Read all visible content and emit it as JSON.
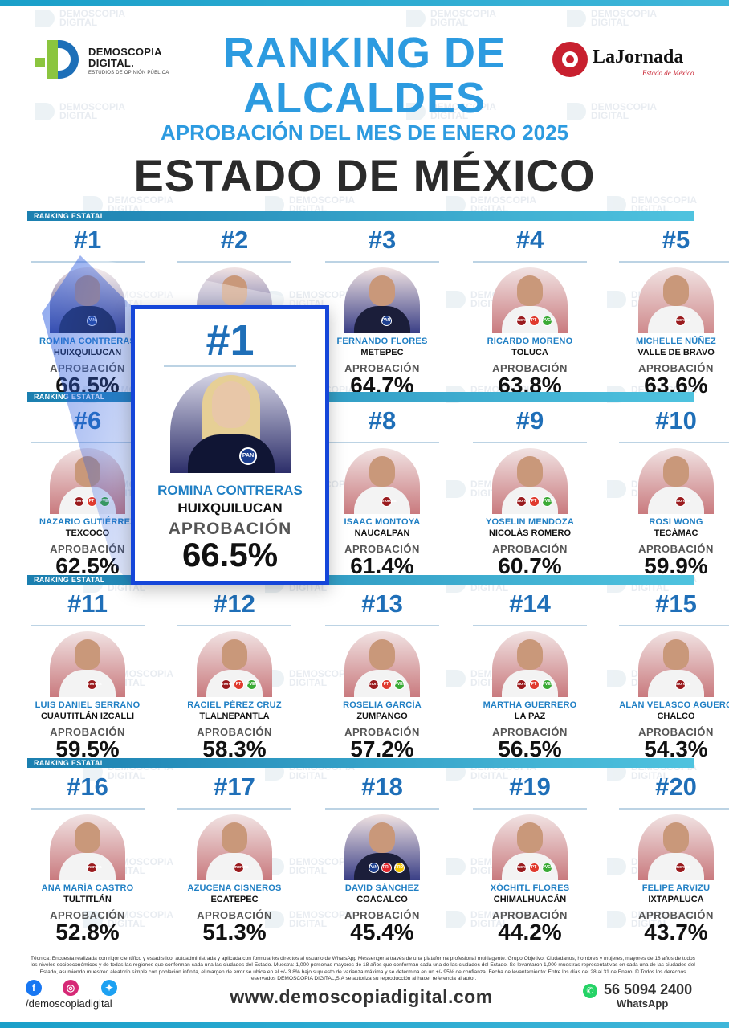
{
  "header": {
    "title_line1": "RANKING DE",
    "title_line2": "ALCALDES",
    "subtitle": "APROBACIÓN DEL MES DE ENERO 2025",
    "state": "ESTADO DE MÉXICO",
    "left_logo": {
      "name_line1": "DEMOSCOPIA",
      "name_line2": "DIGITAL.",
      "tagline": "ESTUDIOS DE OPINIÓN PÚBLICA"
    },
    "right_logo": {
      "name": "LaJornada",
      "sub": "Estado de México"
    }
  },
  "watermark": {
    "line1": "DEMOSCOPIA",
    "line2": "DIGITAL"
  },
  "section_label": "RANKING ESTATAL",
  "approval_label": "APROBACIÓN",
  "colors": {
    "title_blue": "#2d9be0",
    "rank_blue": "#1f6fb8",
    "name_blue": "#1f7fc4",
    "highlight_border": "#1546d9",
    "band": "#1b7fb0"
  },
  "rows": [
    {
      "cards": [
        {
          "rank": "#1",
          "name": "ROMINA CONTRERAS",
          "city": "HUIXQUILUCAN",
          "value": "66.5%",
          "parties": [
            "PAN"
          ],
          "bg": "#3b3f86"
        },
        {
          "rank": "#2",
          "name": "",
          "city": "",
          "value": "",
          "parties": [],
          "bg": "#4a4f93"
        },
        {
          "rank": "#3",
          "name": "FERNANDO FLORES",
          "city": "METEPEC",
          "value": "64.7%",
          "parties": [
            "PAN"
          ],
          "bg": "#3a3f86"
        },
        {
          "rank": "#4",
          "name": "RICARDO MORENO",
          "city": "TOLUCA",
          "value": "63.8%",
          "parties": [
            "morena",
            "PT",
            "PVEM"
          ],
          "bg": "#c97a7e"
        },
        {
          "rank": "#5",
          "name": "MICHELLE NÚÑEZ",
          "city": "VALLE DE BRAVO",
          "value": "63.6%",
          "parties": [
            "morena"
          ],
          "bg": "#cf8a8c"
        }
      ]
    },
    {
      "cards": [
        {
          "rank": "#6",
          "name": "NAZARIO GUTIÉRREZ",
          "city": "TEXCOCO",
          "value": "62.5%",
          "parties": [
            "morena",
            "PT",
            "PVEM"
          ],
          "bg": "#c97a7e"
        },
        {
          "rank": "#7",
          "name": "",
          "city": "",
          "value": "",
          "parties": [],
          "bg": "#c97a7e"
        },
        {
          "rank": "#8",
          "name": "ISAAC MONTOYA",
          "city": "NAUCALPAN",
          "value": "61.4%",
          "parties": [
            "morena"
          ],
          "bg": "#c97a7e"
        },
        {
          "rank": "#9",
          "name": "YOSELIN MENDOZA",
          "city": "NICOLÁS ROMERO",
          "value": "60.7%",
          "parties": [
            "morena",
            "PT",
            "PVEM"
          ],
          "bg": "#c97a7e"
        },
        {
          "rank": "#10",
          "name": "ROSI WONG",
          "city": "TECÁMAC",
          "value": "59.9%",
          "parties": [
            "morena"
          ],
          "bg": "#c97a7e"
        }
      ]
    },
    {
      "cards": [
        {
          "rank": "#11",
          "name": "LUIS DANIEL SERRANO",
          "city": "CUAUTITLÁN IZCALLI",
          "value": "59.5%",
          "parties": [
            "morena"
          ],
          "bg": "#c97a7e"
        },
        {
          "rank": "#12",
          "name": "RACIEL PÉREZ CRUZ",
          "city": "TLALNEPANTLA",
          "value": "58.3%",
          "parties": [
            "morena",
            "PT",
            "PVEM"
          ],
          "bg": "#c97a7e"
        },
        {
          "rank": "#13",
          "name": "ROSELIA GARCÍA",
          "city": "ZUMPANGO",
          "value": "57.2%",
          "parties": [
            "morena",
            "PT",
            "PVEM"
          ],
          "bg": "#c97a7e"
        },
        {
          "rank": "#14",
          "name": "MARTHA GUERRERO",
          "city": "LA PAZ",
          "value": "56.5%",
          "parties": [
            "morena",
            "PT",
            "PVEM"
          ],
          "bg": "#c97a7e"
        },
        {
          "rank": "#15",
          "name": "ALAN VELASCO AGUERO",
          "city": "CHALCO",
          "value": "54.3%",
          "parties": [
            "morena"
          ],
          "bg": "#c97a7e"
        }
      ]
    },
    {
      "cards": [
        {
          "rank": "#16",
          "name": "ANA MARÍA CASTRO",
          "city": "TULTITLÁN",
          "value": "52.8%",
          "parties": [
            "morena"
          ],
          "bg": "#c97a7e"
        },
        {
          "rank": "#17",
          "name": "AZUCENA CISNEROS",
          "city": "ECATEPEC",
          "value": "51.3%",
          "parties": [
            "morena"
          ],
          "bg": "#c97a7e"
        },
        {
          "rank": "#18",
          "name": "DAVID SÁNCHEZ",
          "city": "COACALCO",
          "value": "45.4%",
          "parties": [
            "PAN",
            "PRI",
            "PRD"
          ],
          "bg": "#3a3f86"
        },
        {
          "rank": "#19",
          "name": "XÓCHITL FLORES",
          "city": "CHIMALHUACÁN",
          "value": "44.2%",
          "parties": [
            "morena",
            "PT",
            "PVEM"
          ],
          "bg": "#c97a7e"
        },
        {
          "rank": "#20",
          "name": "FELIPE ARVIZU",
          "city": "IXTAPALUCA",
          "value": "43.7%",
          "parties": [
            "morena"
          ],
          "bg": "#c97a7e"
        }
      ]
    }
  ],
  "highlight": {
    "rank": "#1",
    "name": "ROMINA CONTRERAS",
    "city": "HUIXQUILUCAN",
    "label": "APROBACIÓN",
    "value": "66.5%",
    "party": "PAN"
  },
  "footer": {
    "technical_note": "Técnica: Encuesta realizada con rigor científico y estadístico, autoadministrada y aplicada con formularios directos al usuario de WhatsApp Messenger a través de una plataforma profesional multiagente. Grupo Objetivo: Ciudadanos, hombres y mujeres, mayores de 18 años de todos los niveles socioeconómicos y de todas las regiones que conforman cada una las ciudades del Estado. Muestra: 1,000 personas mayores de 18 años que conforman cada una de las ciudades del Estado. Se levantaron 1,000 muestras representativas en cada una de las ciudades del Estado, asumiendo muestreo aleatorio simple con población infinita, el margen de error se ubica en el +/- 3.8% bajo supuesto de varianza máxima y se determina en un +/- 95% de confianza. Fecha de levantamiento: Entre los días del 28 al 31 de Enero. © Todos los derechos reservados DEMOSCOPIA DIGITAL,S.A se autoriza su reproducción al hacer referencia al autor.",
    "social_handle": "/demoscopiadigital",
    "website": "www.demoscopiadigital.com",
    "whatsapp_number": "56 5094 2400",
    "whatsapp_label": "WhatsApp"
  }
}
